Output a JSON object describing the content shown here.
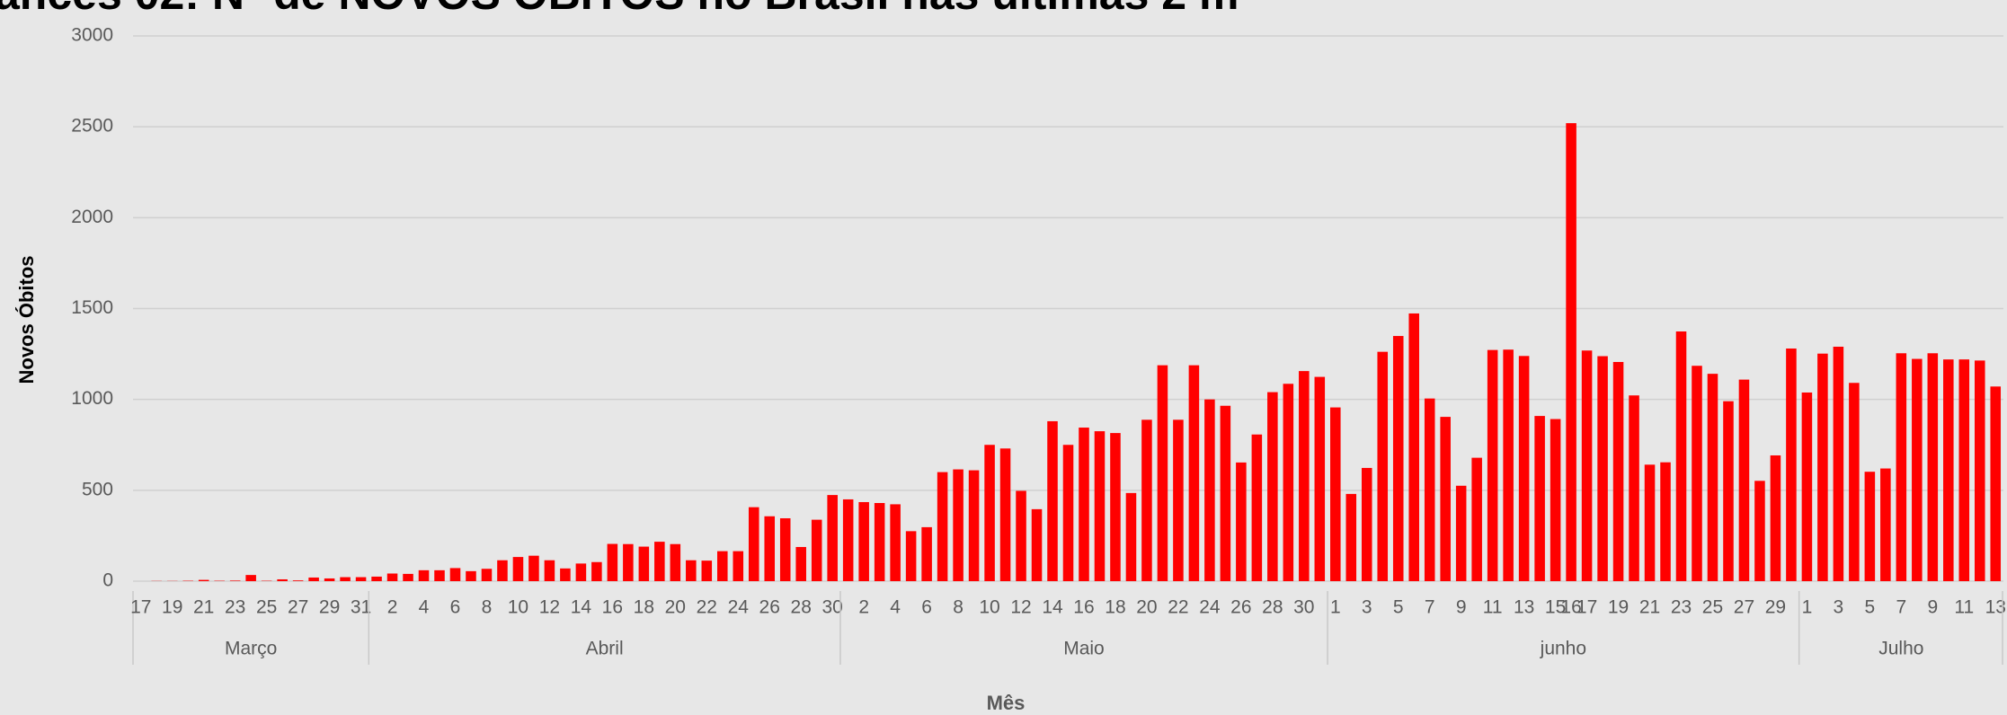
{
  "chart_data": {
    "type": "bar",
    "title": "ances 02: Nº de NOVOS ÓBITOS no Brasil nas últimas 2 m",
    "ylabel": "Novos Óbitos",
    "xlabel": "Mês",
    "color": "#ff0000",
    "grid": true,
    "ylim": [
      0,
      3000
    ],
    "yticks": [
      0,
      500,
      1000,
      1500,
      2000,
      2500,
      3000
    ],
    "groups": [
      {
        "name": "Março",
        "categories": [
          "17",
          null,
          "19",
          null,
          "21",
          null,
          "23",
          null,
          "25",
          null,
          "27",
          null,
          "29",
          null,
          "31"
        ],
        "values": [
          0,
          1,
          1,
          2,
          7,
          2,
          3,
          34,
          2,
          10,
          4,
          20,
          15,
          22,
          22
        ]
      },
      {
        "name": "Abril",
        "categories": [
          null,
          "2",
          null,
          "4",
          null,
          "6",
          null,
          "8",
          null,
          "10",
          null,
          "12",
          null,
          "14",
          null,
          "16",
          null,
          "18",
          null,
          "20",
          null,
          "22",
          null,
          "24",
          null,
          "26",
          null,
          "28",
          null,
          "30"
        ],
        "values": [
          25,
          42,
          40,
          60,
          60,
          72,
          55,
          68,
          115,
          133,
          140,
          115,
          70,
          97,
          105,
          205,
          204,
          190,
          217,
          204,
          115,
          113,
          165,
          165,
          407,
          357,
          346,
          188,
          338,
          474
        ]
      },
      {
        "name": "Maio",
        "categories": [
          null,
          "2",
          null,
          "4",
          null,
          "6",
          null,
          "8",
          null,
          "10",
          null,
          "12",
          null,
          "14",
          null,
          "16",
          null,
          "18",
          null,
          "20",
          null,
          "22",
          null,
          "24",
          null,
          "26",
          null,
          "28",
          null,
          "30",
          null
        ],
        "values": [
          450,
          435,
          430,
          423,
          275,
          297,
          600,
          615,
          610,
          750,
          730,
          497,
          396,
          880,
          750,
          845,
          825,
          815,
          485,
          888,
          1188,
          888,
          1188,
          1000,
          965,
          653,
          807,
          1040,
          1086,
          1156,
          1124
        ]
      },
      {
        "name": "junho",
        "categories": [
          "1",
          null,
          "3",
          null,
          "5",
          null,
          "7",
          null,
          "9",
          null,
          "11",
          null,
          "13",
          null,
          "15",
          "16",
          "17",
          null,
          "19",
          null,
          "21",
          null,
          "23",
          null,
          "25",
          null,
          "27",
          null,
          "29",
          null
        ],
        "values": [
          956,
          480,
          623,
          1262,
          1349,
          1473,
          1005,
          904,
          525,
          679,
          1272,
          1274,
          1239,
          909,
          892,
          2520,
          1269,
          1238,
          1206,
          1022,
          641,
          654,
          1374,
          1185,
          1141,
          990,
          1109,
          552,
          692,
          1280
        ]
      },
      {
        "name": "Julho",
        "categories": [
          "1",
          null,
          "3",
          null,
          "5",
          null,
          "7",
          null,
          "9",
          null,
          "11",
          null,
          "13"
        ],
        "values": [
          1038,
          1252,
          1290,
          1091,
          602,
          620,
          1254,
          1223,
          1254,
          1220,
          1220,
          1214,
          1071
        ]
      }
    ]
  }
}
